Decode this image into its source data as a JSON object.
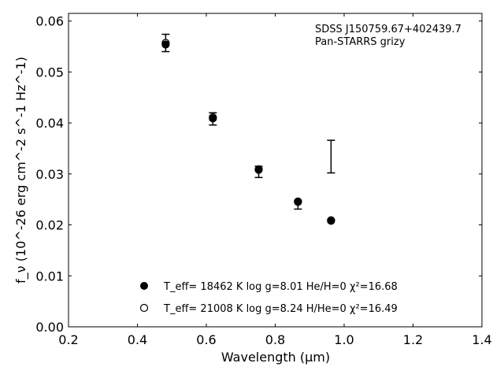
{
  "chart_data": {
    "type": "scatter",
    "annotation": {
      "line1": "SDSS J150759.67+402439.7",
      "line2": "Pan-STARRS grizy"
    },
    "xlabel": "Wavelength (μm)",
    "ylabel": "f_ν (10^-26 erg cm^-2 s^-1 Hz^-1)",
    "xlim": [
      0.2,
      1.4
    ],
    "ylim": [
      0.0,
      0.0615
    ],
    "xticks": [
      0.2,
      0.4,
      0.6,
      0.8,
      1.0,
      1.2,
      1.4
    ],
    "xtick_labels": [
      "0.2",
      "0.4",
      "0.6",
      "0.8",
      "1.0",
      "1.2",
      "1.4"
    ],
    "yticks": [
      0.0,
      0.01,
      0.02,
      0.03,
      0.04,
      0.05,
      0.06
    ],
    "ytick_labels": [
      "0.00",
      "0.01",
      "0.02",
      "0.03",
      "0.04",
      "0.05",
      "0.06"
    ],
    "grid": false,
    "observed": [
      {
        "x": 0.482,
        "y": 0.0557,
        "err": 0.0017
      },
      {
        "x": 0.619,
        "y": 0.0408,
        "err": 0.0012
      },
      {
        "x": 0.752,
        "y": 0.0304,
        "err": 0.0011
      },
      {
        "x": 0.866,
        "y": 0.0239,
        "err": 0.0008
      },
      {
        "x": 0.962,
        "y": 0.0334,
        "err": 0.0032
      }
    ],
    "series": [
      {
        "legend_text": "T_eff= 18462 K  log g=8.01  He/H=0  χ²=16.68",
        "marker": "filled",
        "x": [
          0.482,
          0.619,
          0.752,
          0.866,
          0.962
        ],
        "y": [
          0.0554,
          0.0409,
          0.0308,
          0.0245,
          0.0208
        ]
      },
      {
        "legend_text": "T_eff= 21008 K  log g=8.24  H/He=0  χ²=16.49",
        "marker": "open",
        "x": [
          0.482,
          0.619,
          0.752,
          0.866,
          0.962
        ],
        "y": [
          0.0557,
          0.0411,
          0.0309,
          0.0246,
          0.0209
        ]
      }
    ]
  }
}
